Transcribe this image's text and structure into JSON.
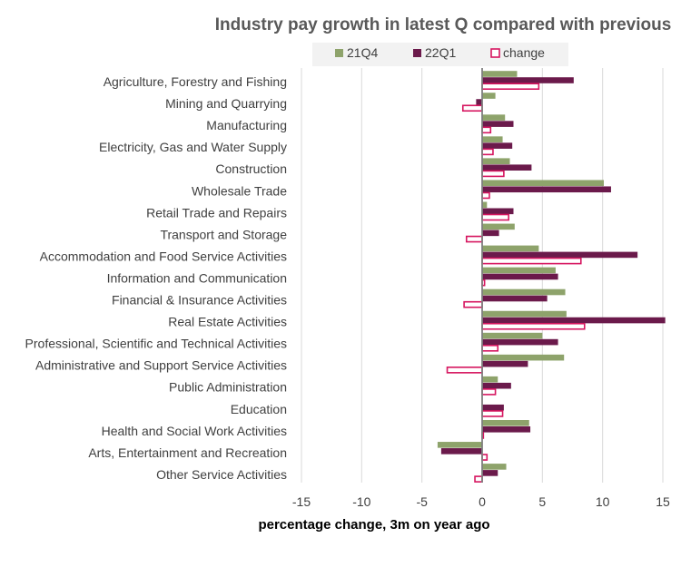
{
  "chart_data": {
    "type": "bar",
    "orientation": "horizontal",
    "title": "Industry pay growth in latest Q compared with previous",
    "xlabel": "percentage change, 3m on year ago",
    "ylabel": "",
    "xlim": [
      -15,
      15
    ],
    "xticks": [
      -15,
      -10,
      -5,
      0,
      5,
      10,
      15
    ],
    "grid": "vertical",
    "legend": "top",
    "categories": [
      "Agriculture, Forestry and Fishing",
      "Mining and Quarrying",
      "Manufacturing",
      "Electricity, Gas and Water Supply",
      "Construction",
      "Wholesale Trade",
      "Retail Trade and Repairs",
      "Transport and Storage",
      "Accommodation and Food Service Activities",
      "Information and Communication",
      "Financial & Insurance Activities",
      "Real Estate Activities",
      "Professional, Scientific and Technical Activities",
      "Administrative and Support Service Activities",
      "Public Administration",
      "Education",
      "Health and Social Work Activities",
      "Arts, Entertainment and Recreation",
      "Other Service Activities"
    ],
    "series": [
      {
        "name": "21Q4",
        "color": "#8ea36b",
        "style": "filled",
        "values": [
          2.9,
          1.1,
          1.9,
          1.7,
          2.3,
          10.1,
          0.4,
          2.7,
          4.7,
          6.1,
          6.9,
          7.0,
          5.0,
          6.8,
          1.3,
          0.0,
          3.9,
          -3.7,
          2.0
        ]
      },
      {
        "name": "22Q1",
        "color": "#6b1a4b",
        "style": "filled",
        "values": [
          7.6,
          -0.5,
          2.6,
          2.5,
          4.1,
          10.7,
          2.6,
          1.4,
          12.9,
          6.3,
          5.4,
          15.2,
          6.3,
          3.8,
          2.4,
          1.8,
          4.0,
          -3.4,
          1.3
        ]
      },
      {
        "name": "change",
        "color": "#d6155f",
        "style": "outline",
        "values": [
          4.7,
          -1.6,
          0.7,
          0.9,
          1.8,
          0.6,
          2.2,
          -1.3,
          8.2,
          0.2,
          -1.5,
          8.5,
          1.3,
          -2.9,
          1.1,
          1.7,
          0.1,
          0.4,
          -0.6
        ]
      }
    ]
  }
}
